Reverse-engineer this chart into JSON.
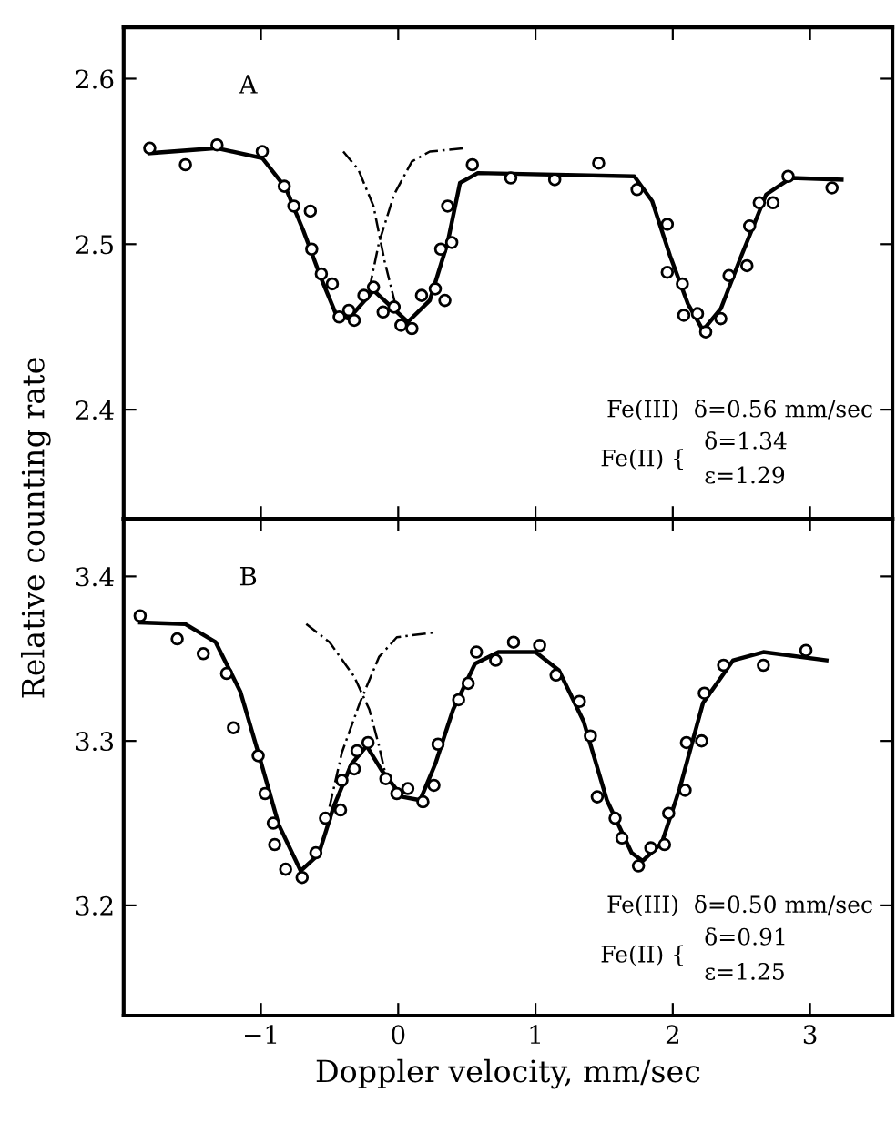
{
  "chart_data": [
    {
      "type": "scatter",
      "ylabel": "Relative counting rate",
      "xlim": [
        -2.0,
        3.6
      ],
      "ylim": [
        2.334,
        2.631
      ],
      "xticks": [
        {
          "value": -1,
          "label": null
        },
        {
          "value": 0,
          "label": null
        },
        {
          "value": 1,
          "label": null
        },
        {
          "value": 2,
          "label": null
        },
        {
          "value": 3,
          "label": null
        }
      ],
      "yticks": [
        2.4,
        2.5,
        2.6
      ],
      "tick_labels": "y",
      "grid": false,
      "legend": false,
      "annotations": [
        "A",
        "Fe(III)  δ=0.56 mm/sec",
        "Fe(II) {",
        "δ=1.34",
        "ε=1.29"
      ],
      "series": [
        {
          "marker": "circle",
          "color": "#000000",
          "x": [
            -1.81,
            -1.55,
            -1.32,
            -0.99,
            -0.83,
            -0.76,
            -0.64,
            -0.63,
            -0.56,
            -0.48,
            -0.43,
            -0.36,
            -0.32,
            -0.25,
            -0.18,
            -0.11,
            -0.03,
            0.02,
            0.1,
            0.17,
            0.27,
            0.34,
            0.31,
            0.39,
            0.36,
            0.54,
            0.82,
            1.14,
            1.46,
            1.74,
            1.96,
            1.96,
            2.07,
            2.08,
            2.18,
            2.24,
            2.35,
            2.41,
            2.54,
            2.56,
            2.63,
            2.73,
            2.84,
            3.16
          ],
          "values": [
            2.558,
            2.548,
            2.56,
            2.556,
            2.535,
            2.523,
            2.52,
            2.497,
            2.482,
            2.476,
            2.456,
            2.46,
            2.454,
            2.469,
            2.474,
            2.459,
            2.462,
            2.451,
            2.449,
            2.469,
            2.473,
            2.466,
            2.497,
            2.501,
            2.523,
            2.548,
            2.54,
            2.539,
            2.549,
            2.533,
            2.512,
            2.483,
            2.476,
            2.457,
            2.458,
            2.447,
            2.455,
            2.481,
            2.487,
            2.511,
            2.525,
            2.525,
            2.541,
            2.534
          ]
        },
        {
          "type": "line",
          "line_style": "solid",
          "color": "#000000",
          "x": [
            -1.81,
            -1.32,
            -0.99,
            -0.82,
            -0.69,
            -0.56,
            -0.45,
            -0.36,
            -0.18,
            0.07,
            0.23,
            0.36,
            0.45,
            0.58,
            1.72,
            1.85,
            1.98,
            2.11,
            2.22,
            2.35,
            2.5,
            2.68,
            2.86,
            3.23
          ],
          "values": [
            2.555,
            2.558,
            2.552,
            2.534,
            2.508,
            2.479,
            2.457,
            2.455,
            2.472,
            2.453,
            2.466,
            2.501,
            2.537,
            2.543,
            2.541,
            2.526,
            2.493,
            2.464,
            2.448,
            2.461,
            2.493,
            2.53,
            2.54,
            2.539
          ]
        },
        {
          "type": "line",
          "line_style": "dashed",
          "color": "#000000",
          "x": [
            -0.4,
            -0.29,
            -0.18,
            -0.1,
            -0.01
          ],
          "values": [
            2.556,
            2.545,
            2.523,
            2.49,
            2.46
          ]
        },
        {
          "type": "line",
          "line_style": "dashed",
          "color": "#000000",
          "x": [
            -0.21,
            -0.14,
            -0.03,
            0.1,
            0.23,
            0.49
          ],
          "values": [
            2.473,
            2.501,
            2.53,
            2.55,
            2.556,
            2.558
          ]
        }
      ]
    },
    {
      "type": "scatter",
      "xlabel": "Doppler velocity, mm/sec",
      "xlim": [
        -2.0,
        3.6
      ],
      "ylim": [
        3.133,
        3.435
      ],
      "xticks": [
        {
          "value": -1,
          "label": "−1"
        },
        0,
        1,
        2,
        3
      ],
      "yticks": [
        3.2,
        3.3,
        3.4
      ],
      "grid": false,
      "legend": false,
      "annotations": [
        "B",
        "Fe(III)  δ=0.50 mm/sec",
        "Fe(II) {",
        "δ=0.91",
        "ε=1.25"
      ],
      "series": [
        {
          "marker": "circle",
          "color": "#000000",
          "x": [
            -1.88,
            -1.61,
            -1.42,
            -1.25,
            -1.2,
            -1.02,
            -0.97,
            -0.91,
            -0.9,
            -0.82,
            -0.7,
            -0.6,
            -0.53,
            -0.42,
            -0.41,
            -0.32,
            -0.3,
            -0.22,
            -0.09,
            -0.01,
            0.07,
            0.18,
            0.26,
            0.29,
            0.44,
            0.51,
            0.57,
            0.71,
            0.84,
            1.03,
            1.15,
            1.32,
            1.4,
            1.45,
            1.58,
            1.63,
            1.75,
            1.84,
            1.94,
            1.97,
            2.09,
            2.1,
            2.21,
            2.23,
            2.37,
            2.66,
            2.97
          ],
          "values": [
            3.376,
            3.362,
            3.353,
            3.341,
            3.308,
            3.291,
            3.268,
            3.25,
            3.237,
            3.222,
            3.217,
            3.232,
            3.253,
            3.258,
            3.276,
            3.283,
            3.294,
            3.299,
            3.277,
            3.268,
            3.271,
            3.263,
            3.273,
            3.298,
            3.325,
            3.335,
            3.354,
            3.349,
            3.36,
            3.358,
            3.34,
            3.324,
            3.303,
            3.266,
            3.253,
            3.241,
            3.224,
            3.235,
            3.237,
            3.256,
            3.27,
            3.299,
            3.3,
            3.329,
            3.346,
            3.346,
            3.355
          ]
        },
        {
          "type": "line",
          "line_style": "solid",
          "color": "#000000",
          "x": [
            -1.88,
            -1.55,
            -1.33,
            -1.15,
            -1.02,
            -0.87,
            -0.71,
            -0.58,
            -0.47,
            -0.34,
            -0.23,
            -0.12,
            0.03,
            0.16,
            0.27,
            0.4,
            0.56,
            0.73,
            1.0,
            1.17,
            1.35,
            1.52,
            1.7,
            1.78,
            1.92,
            2.05,
            2.22,
            2.44,
            2.66,
            3.12
          ],
          "values": [
            3.372,
            3.371,
            3.36,
            3.33,
            3.293,
            3.249,
            3.221,
            3.231,
            3.26,
            3.286,
            3.297,
            3.282,
            3.266,
            3.264,
            3.286,
            3.319,
            3.347,
            3.354,
            3.354,
            3.343,
            3.312,
            3.264,
            3.232,
            3.227,
            3.238,
            3.271,
            3.323,
            3.349,
            3.354,
            3.349
          ]
        },
        {
          "type": "line",
          "line_style": "dashed",
          "color": "#000000",
          "x": [
            -0.67,
            -0.5,
            -0.32,
            -0.21,
            -0.14,
            -0.08
          ],
          "values": [
            3.371,
            3.36,
            3.339,
            3.319,
            3.297,
            3.275
          ]
        },
        {
          "type": "line",
          "line_style": "dashed",
          "color": "#000000",
          "x": [
            -0.5,
            -0.41,
            -0.28,
            -0.14,
            -0.01,
            0.27
          ],
          "values": [
            3.26,
            3.293,
            3.323,
            3.351,
            3.363,
            3.366
          ]
        }
      ]
    }
  ]
}
